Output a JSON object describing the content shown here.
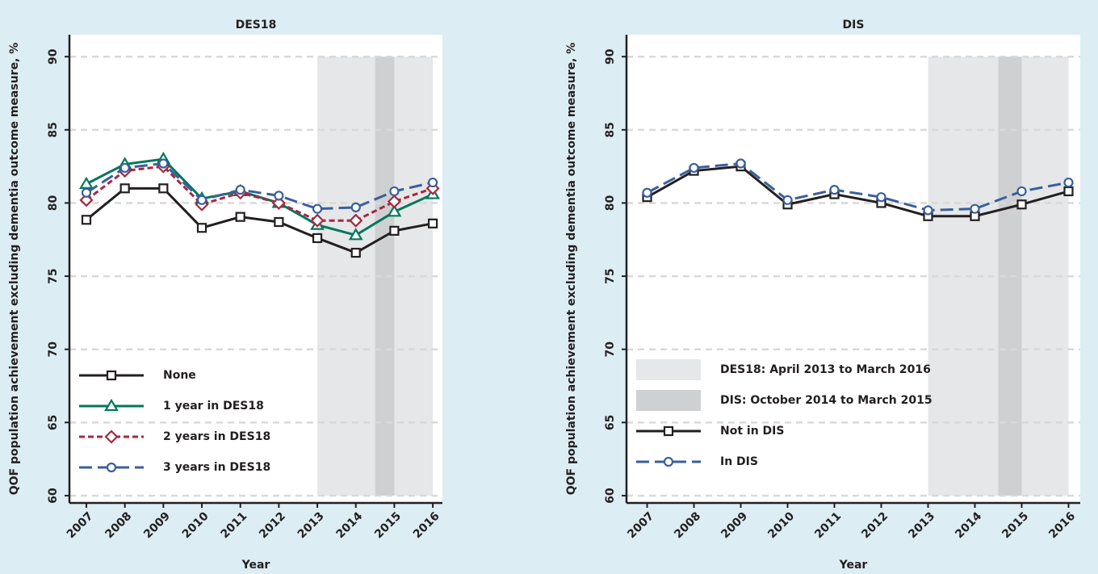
{
  "chart_data": [
    {
      "type": "line",
      "title": "DES18",
      "xlabel": "Year",
      "ylabel": "QOF population achievement excluding dementia outcome measure, %",
      "x": [
        2007,
        2008,
        2009,
        2010,
        2011,
        2012,
        2013,
        2014,
        2015,
        2016
      ],
      "xlim": [
        2006.56,
        2016.25
      ],
      "xticks": [
        2007,
        2008,
        2009,
        2010,
        2011,
        2012,
        2013,
        2014,
        2015,
        2016
      ],
      "ylim": [
        59.5,
        91.5
      ],
      "yticks": [
        60,
        65,
        70,
        75,
        80,
        85,
        90
      ],
      "grid": true,
      "legend": "lower left",
      "bands": [
        {
          "from": 2013,
          "to": 2016,
          "color": "#e6e7e8"
        },
        {
          "from": 2014.5,
          "to": 2015,
          "color": "#cfd0d2"
        }
      ],
      "series": [
        {
          "name": "None",
          "color": "#231f20",
          "marker": "square",
          "line_style": "solid",
          "values": [
            78.85,
            81.0,
            81.0,
            78.3,
            79.05,
            78.7,
            77.6,
            76.6,
            78.1,
            78.6
          ]
        },
        {
          "name": "1 year in DES18",
          "color": "#00775b",
          "marker": "triangle",
          "line_style": "solid",
          "values": [
            81.3,
            82.65,
            83.0,
            80.3,
            80.8,
            80.0,
            78.5,
            77.8,
            79.4,
            80.6
          ]
        },
        {
          "name": "2 years in DES18",
          "color": "#a32a42",
          "marker": "diamond",
          "line_style": "short-dash",
          "values": [
            80.2,
            82.2,
            82.5,
            79.9,
            80.7,
            80.0,
            78.8,
            78.8,
            80.1,
            81.0
          ]
        },
        {
          "name": "3 years in DES18",
          "color": "#3a5f9b",
          "marker": "circle",
          "line_style": "long-dash",
          "values": [
            80.7,
            82.4,
            82.7,
            80.2,
            80.9,
            80.5,
            79.6,
            79.7,
            80.8,
            81.4
          ]
        }
      ]
    },
    {
      "type": "line",
      "title": "DIS",
      "xlabel": "Year",
      "ylabel": "QOF population achievement excluding dementia outcome measure, %",
      "x": [
        2007,
        2008,
        2009,
        2010,
        2011,
        2012,
        2013,
        2014,
        2015,
        2016
      ],
      "xlim": [
        2006.56,
        2016.25
      ],
      "xticks": [
        2007,
        2008,
        2009,
        2010,
        2011,
        2012,
        2013,
        2014,
        2015,
        2016
      ],
      "ylim": [
        59.5,
        91.5
      ],
      "yticks": [
        60,
        65,
        70,
        75,
        80,
        85,
        90
      ],
      "grid": true,
      "legend": "lower left",
      "bands": [
        {
          "name": "DES18: April 2013 to March 2016",
          "from": 2013,
          "to": 2016,
          "color": "#e6e7e8"
        },
        {
          "name": "DIS: October 2014 to March 2015",
          "from": 2014.5,
          "to": 2015,
          "color": "#cfd0d2"
        }
      ],
      "series": [
        {
          "name": "Not in DIS",
          "color": "#231f20",
          "marker": "square",
          "line_style": "solid",
          "values": [
            80.4,
            82.2,
            82.5,
            79.9,
            80.6,
            80.0,
            79.1,
            79.1,
            79.9,
            80.8
          ]
        },
        {
          "name": "In DIS",
          "color": "#3a5f9b",
          "marker": "circle",
          "line_style": "long-dash",
          "values": [
            80.7,
            82.4,
            82.7,
            80.2,
            80.9,
            80.4,
            79.5,
            79.6,
            80.8,
            81.4
          ]
        }
      ]
    }
  ]
}
